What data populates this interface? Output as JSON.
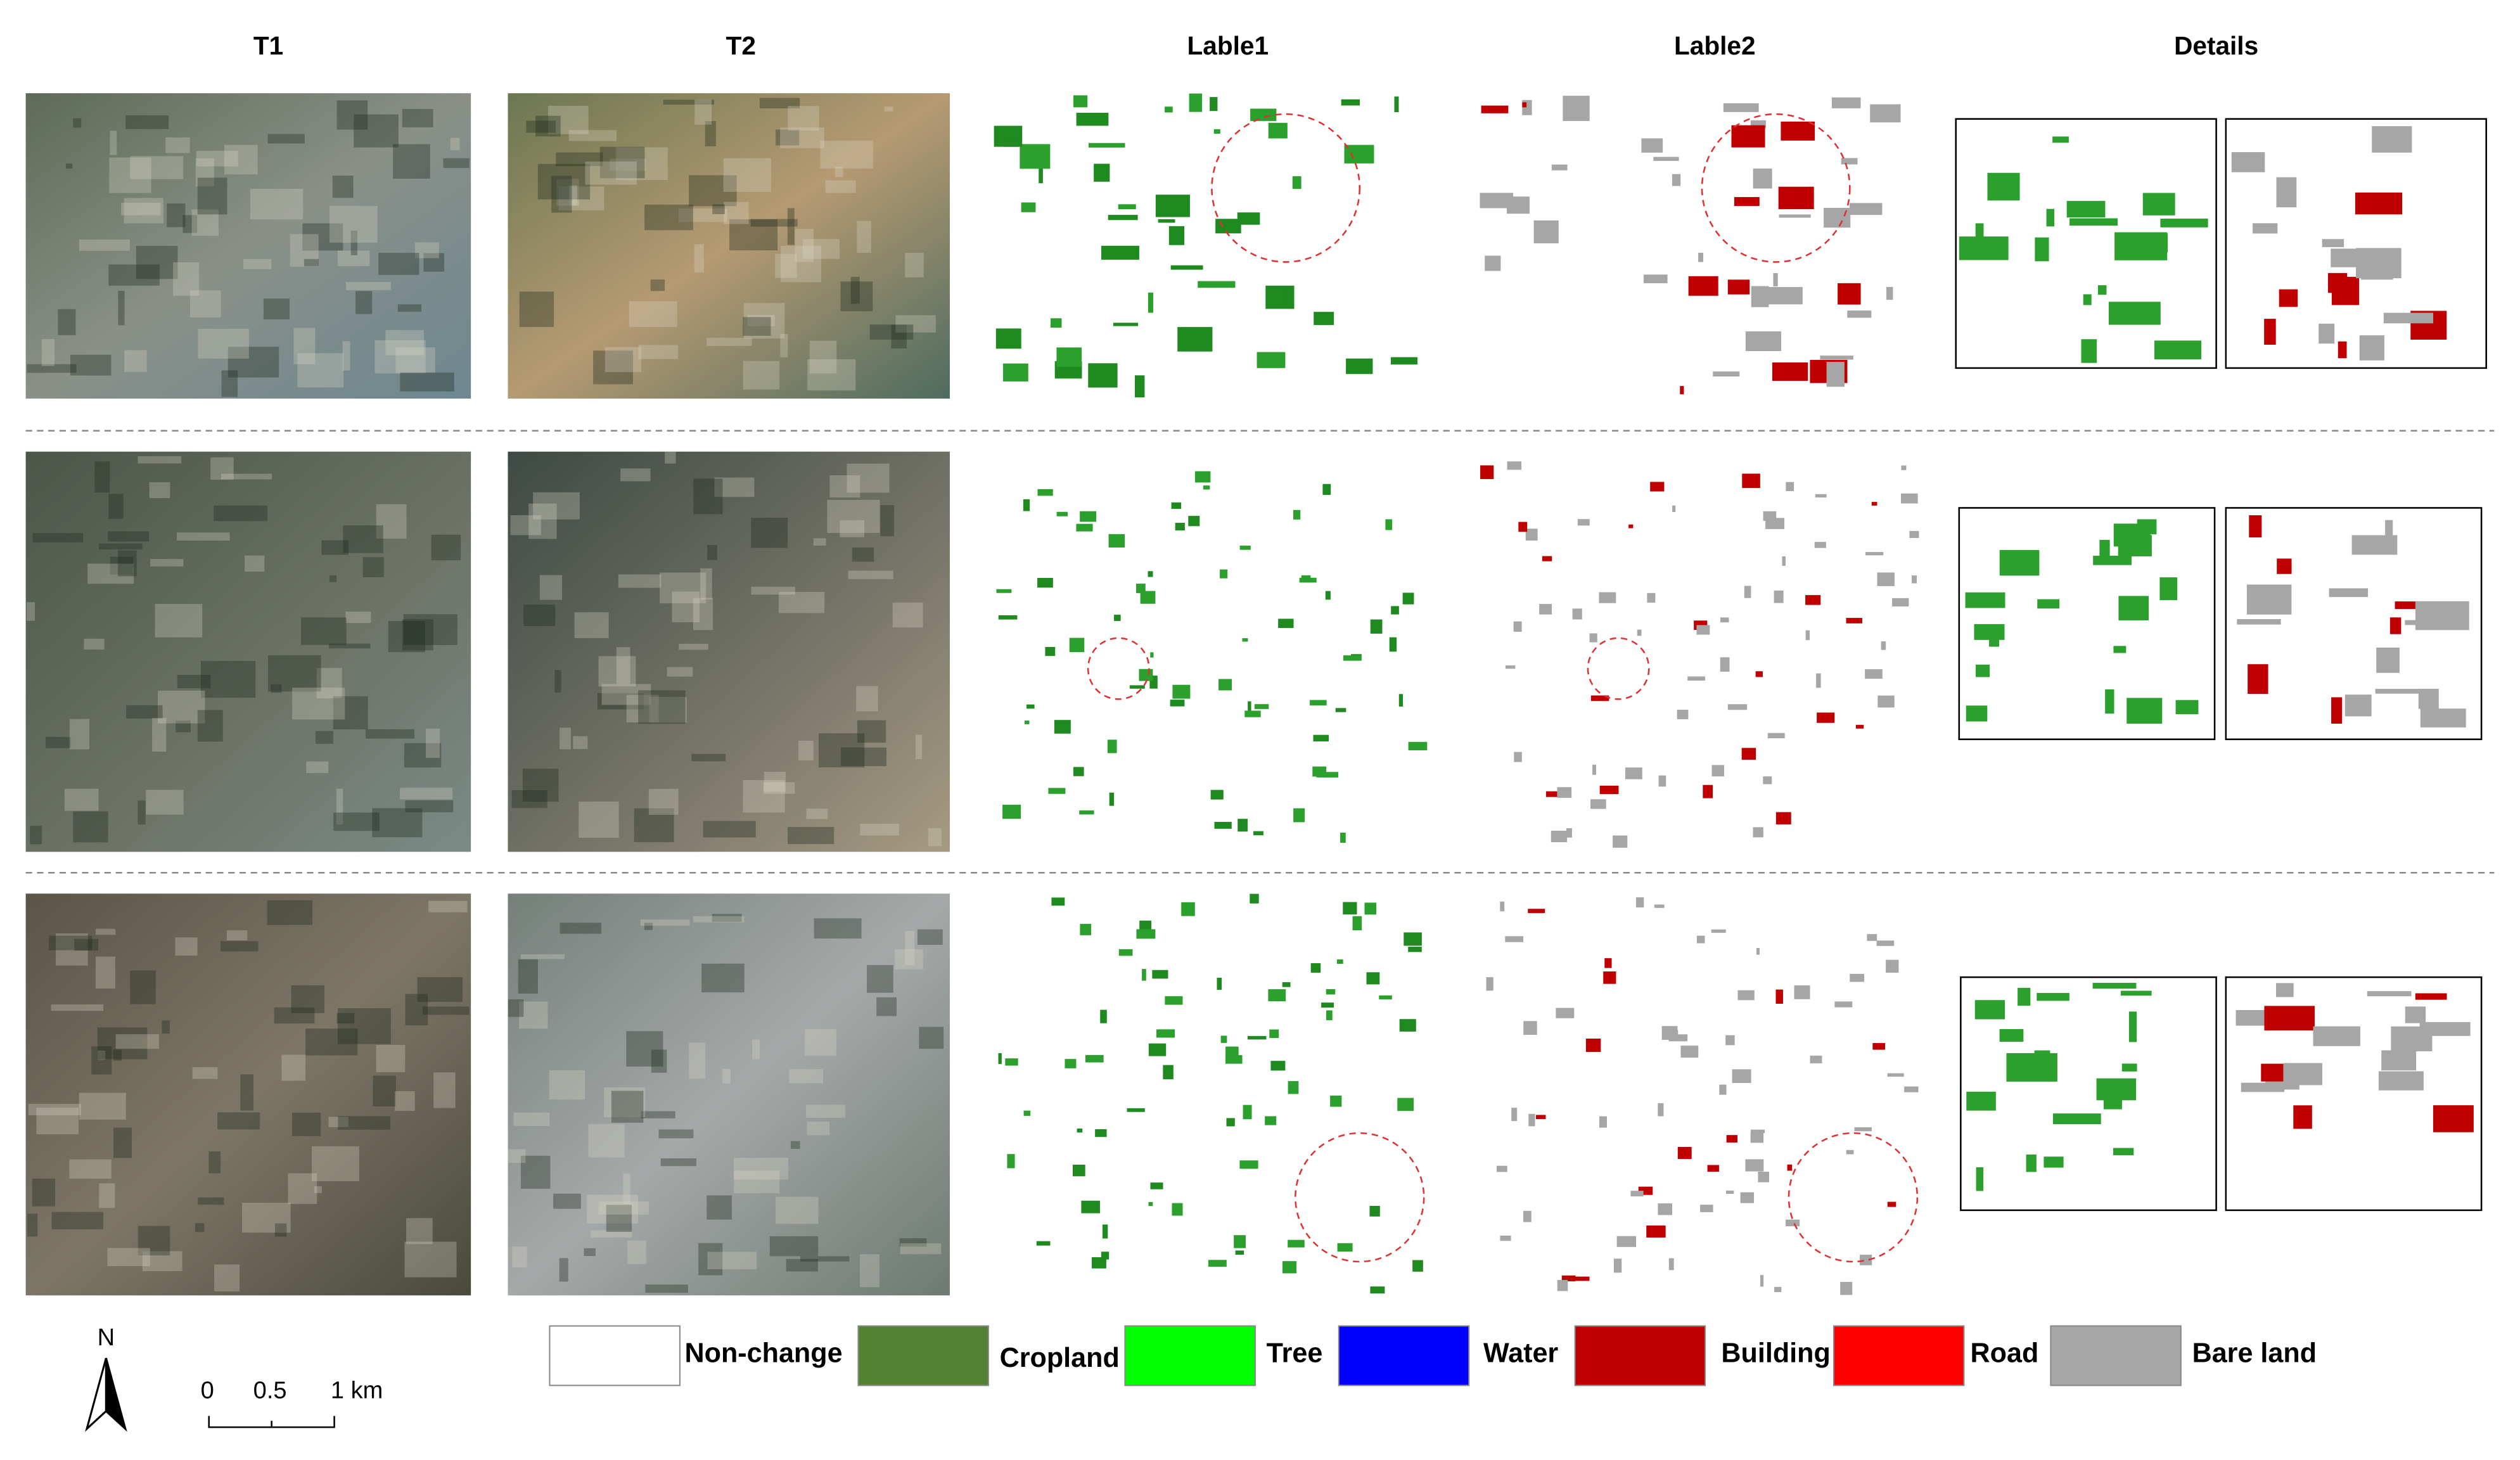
{
  "columns": [
    "T1",
    "T2",
    "Lable1",
    "Lable2",
    "Details"
  ],
  "legend": [
    {
      "label": "Non-change",
      "color": "#ffffff"
    },
    {
      "label": "Cropland",
      "color": "#548235"
    },
    {
      "label": "Tree",
      "color": "#00ff00"
    },
    {
      "label": "Water",
      "color": "#0000ff"
    },
    {
      "label": "Building",
      "color": "#c00000"
    },
    {
      "label": "Road",
      "color": "#ff0000"
    },
    {
      "label": "Bare land",
      "color": "#a6a6a6"
    }
  ],
  "scale_bar": {
    "labels": [
      "0",
      "0.5",
      "1 km"
    ]
  },
  "north_arrow": "N"
}
